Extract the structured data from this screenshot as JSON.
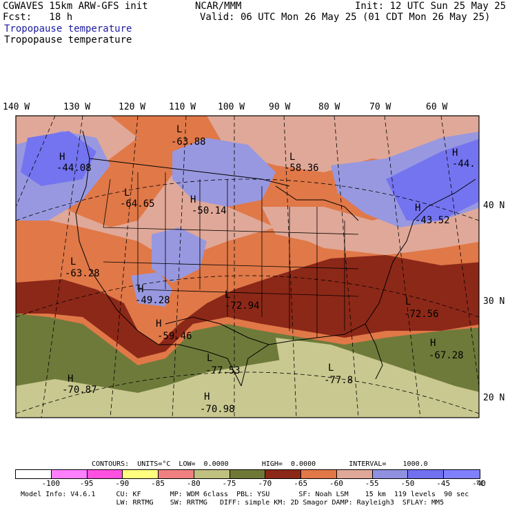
{
  "header": {
    "model": "CGWAVES 15km ARW-GFS init",
    "org": "NCAR/MMM",
    "init": "Init: 12 UTC Sun 25 May 25",
    "fcst": "Fcst:   18 h",
    "valid": "Valid: 06 UTC Mon 26 May 25 (01 CDT Mon 26 May 25)",
    "field_blue": "Tropopause temperature",
    "field_black": "Tropopause temperature"
  },
  "axes": {
    "longitudes": [
      "140 W",
      "130 W",
      "120 W",
      "110 W",
      "100 W",
      "90 W",
      "80 W",
      "70 W",
      "60 W"
    ],
    "latitudes": [
      "40 N",
      "30 N",
      "20 N"
    ]
  },
  "pressure_centers": [
    {
      "type": "L",
      "value": "-63.88"
    },
    {
      "type": "L",
      "value": "-58.36"
    },
    {
      "type": "H",
      "value": "-44.08"
    },
    {
      "type": "H",
      "value": "-44."
    },
    {
      "type": "L",
      "value": "-64.65"
    },
    {
      "type": "H",
      "value": "-50.14"
    },
    {
      "type": "H",
      "value": "-43.52"
    },
    {
      "type": "L",
      "value": "-63.28"
    },
    {
      "type": "H",
      "value": "-49.28"
    },
    {
      "type": "L",
      "value": "-72.94"
    },
    {
      "type": "L",
      "value": "-72.56"
    },
    {
      "type": "H",
      "value": "-59.46"
    },
    {
      "type": "H",
      "value": "-67.28"
    },
    {
      "type": "L",
      "value": "-77.53"
    },
    {
      "type": "L",
      "value": "-77.8"
    },
    {
      "type": "H",
      "value": "-70.87"
    },
    {
      "type": "H",
      "value": "-70.98"
    }
  ],
  "contours_line": "CONTOURS:  UNITS=°C  LOW=  0.0000        HIGH=  0.0000        INTERVAL=    1000.0",
  "colorbar": {
    "colors": [
      "#ffffff",
      "#ff80ff",
      "#ff50e0",
      "#ffff80",
      "#f08080",
      "#c0c080",
      "#707838",
      "#8c2818",
      "#e07848",
      "#e0a898",
      "#9090e0",
      "#7070f0",
      "#8080ff"
    ],
    "labels": [
      "-100",
      "-95",
      "-90",
      "-85",
      "-80",
      "-75",
      "-70",
      "-65",
      "-60",
      "-55",
      "-50",
      "-45",
      "-40"
    ],
    "unit": "°C"
  },
  "footer": {
    "line1": "Model Info: V4.6.1     CU: KF       MP: WDM 6class  PBL: YSU       SF: Noah LSM    15 km  119 levels  90 sec",
    "line2": "                       LW: RRTMG    SW: RRTMG   DIFF: simple KM: 2D Smagor DAMP: Rayleigh3  SFLAY: MM5"
  },
  "colors": {
    "pale_olive": "#c8c890",
    "olive": "#6e7a3a",
    "dark_red": "#8c2818",
    "orange": "#e07848",
    "light_pink": "#e0a898",
    "lavender": "#9898e0",
    "blue": "#7474f0"
  }
}
